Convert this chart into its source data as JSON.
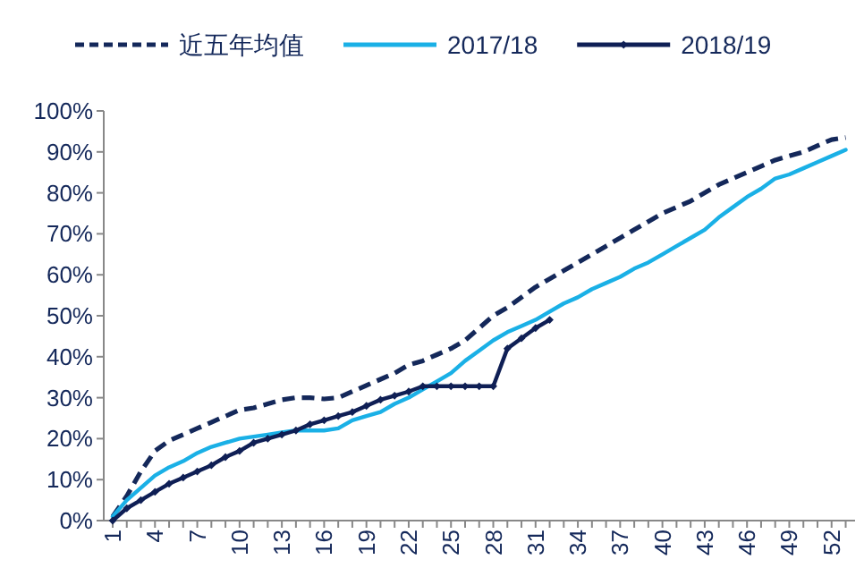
{
  "chart_data": {
    "type": "line",
    "categories": [
      "1",
      null,
      null,
      "4",
      null,
      null,
      "7",
      null,
      null,
      "10",
      null,
      null,
      "13",
      null,
      null,
      "16",
      null,
      null,
      "19",
      null,
      null,
      "22",
      null,
      null,
      "25",
      null,
      null,
      "28",
      null,
      null,
      "31",
      null,
      null,
      "34",
      null,
      null,
      "37",
      null,
      null,
      "40",
      null,
      null,
      "43",
      null,
      null,
      "46",
      null,
      null,
      "49",
      null,
      null,
      "52",
      null
    ],
    "ylim": [
      0,
      100
    ],
    "yticks": [
      {
        "value": 0,
        "label": "0%"
      },
      {
        "value": 10,
        "label": "10%"
      },
      {
        "value": 20,
        "label": "20%"
      },
      {
        "value": 30,
        "label": "30%"
      },
      {
        "value": 40,
        "label": "40%"
      },
      {
        "value": 50,
        "label": "50%"
      },
      {
        "value": 60,
        "label": "60%"
      },
      {
        "value": 70,
        "label": "70%"
      },
      {
        "value": 80,
        "label": "80%"
      },
      {
        "value": 90,
        "label": "90%"
      },
      {
        "value": 100,
        "label": "100%"
      }
    ],
    "grid": false,
    "legend": "top",
    "series": [
      {
        "name": "近五年均值",
        "color": "#14285a",
        "line_style": "dashed",
        "marker": "none",
        "values": [
          1,
          6,
          12,
          17,
          19.5,
          21,
          22.5,
          24,
          25.5,
          27,
          27.5,
          28.5,
          29.5,
          30,
          30,
          29.7,
          30,
          31.5,
          33,
          34.5,
          36,
          38,
          39,
          40.5,
          42,
          44,
          47,
          50,
          52,
          54.5,
          57,
          59,
          61,
          63,
          65,
          67,
          69,
          71,
          73,
          75,
          76.5,
          78,
          80,
          82,
          83.5,
          85,
          86.5,
          88,
          89,
          90,
          91.5,
          93,
          93.5
        ]
      },
      {
        "name": "2017/18",
        "color": "#1ab0e6",
        "line_style": "solid",
        "marker": "none",
        "values": [
          1,
          5,
          8,
          11,
          13,
          14.5,
          16.5,
          18,
          19,
          20,
          20.5,
          21,
          21.5,
          22,
          22,
          22,
          22.5,
          24.5,
          25.5,
          26.5,
          28.5,
          30,
          32,
          34,
          36,
          39,
          41.5,
          44,
          46,
          47.5,
          49,
          51,
          53,
          54.5,
          56.5,
          58,
          59.5,
          61.5,
          63,
          65,
          67,
          69,
          71,
          74,
          76.5,
          79,
          81,
          83.5,
          84.5,
          86,
          87.5,
          89,
          90.5
        ]
      },
      {
        "name": "2018/19",
        "color": "#0f1f55",
        "line_style": "solid",
        "marker": "diamond",
        "values": [
          0,
          3,
          5,
          7,
          9,
          10.5,
          12,
          13.5,
          15.5,
          17,
          19,
          20,
          21,
          22,
          23.5,
          24.5,
          25.5,
          26.5,
          28,
          29.5,
          30.5,
          31.5,
          32.8,
          32.8,
          32.8,
          32.8,
          32.8,
          32.8,
          42,
          44.5,
          47,
          49,
          null,
          null,
          null,
          null,
          null,
          null,
          null,
          null,
          null,
          null,
          null,
          null,
          null,
          null,
          null,
          null,
          null,
          null,
          null,
          null,
          null
        ]
      }
    ]
  }
}
